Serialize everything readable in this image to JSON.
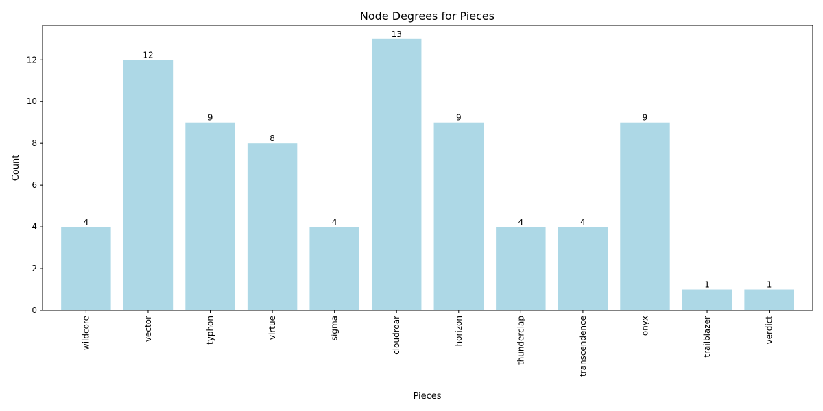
{
  "chart_data": {
    "type": "bar",
    "title": "Node Degrees for Pieces",
    "xlabel": "Pieces",
    "ylabel": "Count",
    "categories": [
      "wildcore",
      "vector",
      "typhon",
      "virtue",
      "sigma",
      "cloudroar",
      "horizon",
      "thunderclap",
      "transcendence",
      "onyx",
      "trailblazer",
      "verdict"
    ],
    "values": [
      4,
      12,
      9,
      8,
      4,
      13,
      9,
      4,
      4,
      9,
      1,
      1
    ],
    "ylim": [
      0,
      13.65
    ],
    "yticks": [
      0,
      2,
      4,
      6,
      8,
      10,
      12
    ],
    "bar_color": "#add8e6",
    "grid": false,
    "legend": "none"
  }
}
